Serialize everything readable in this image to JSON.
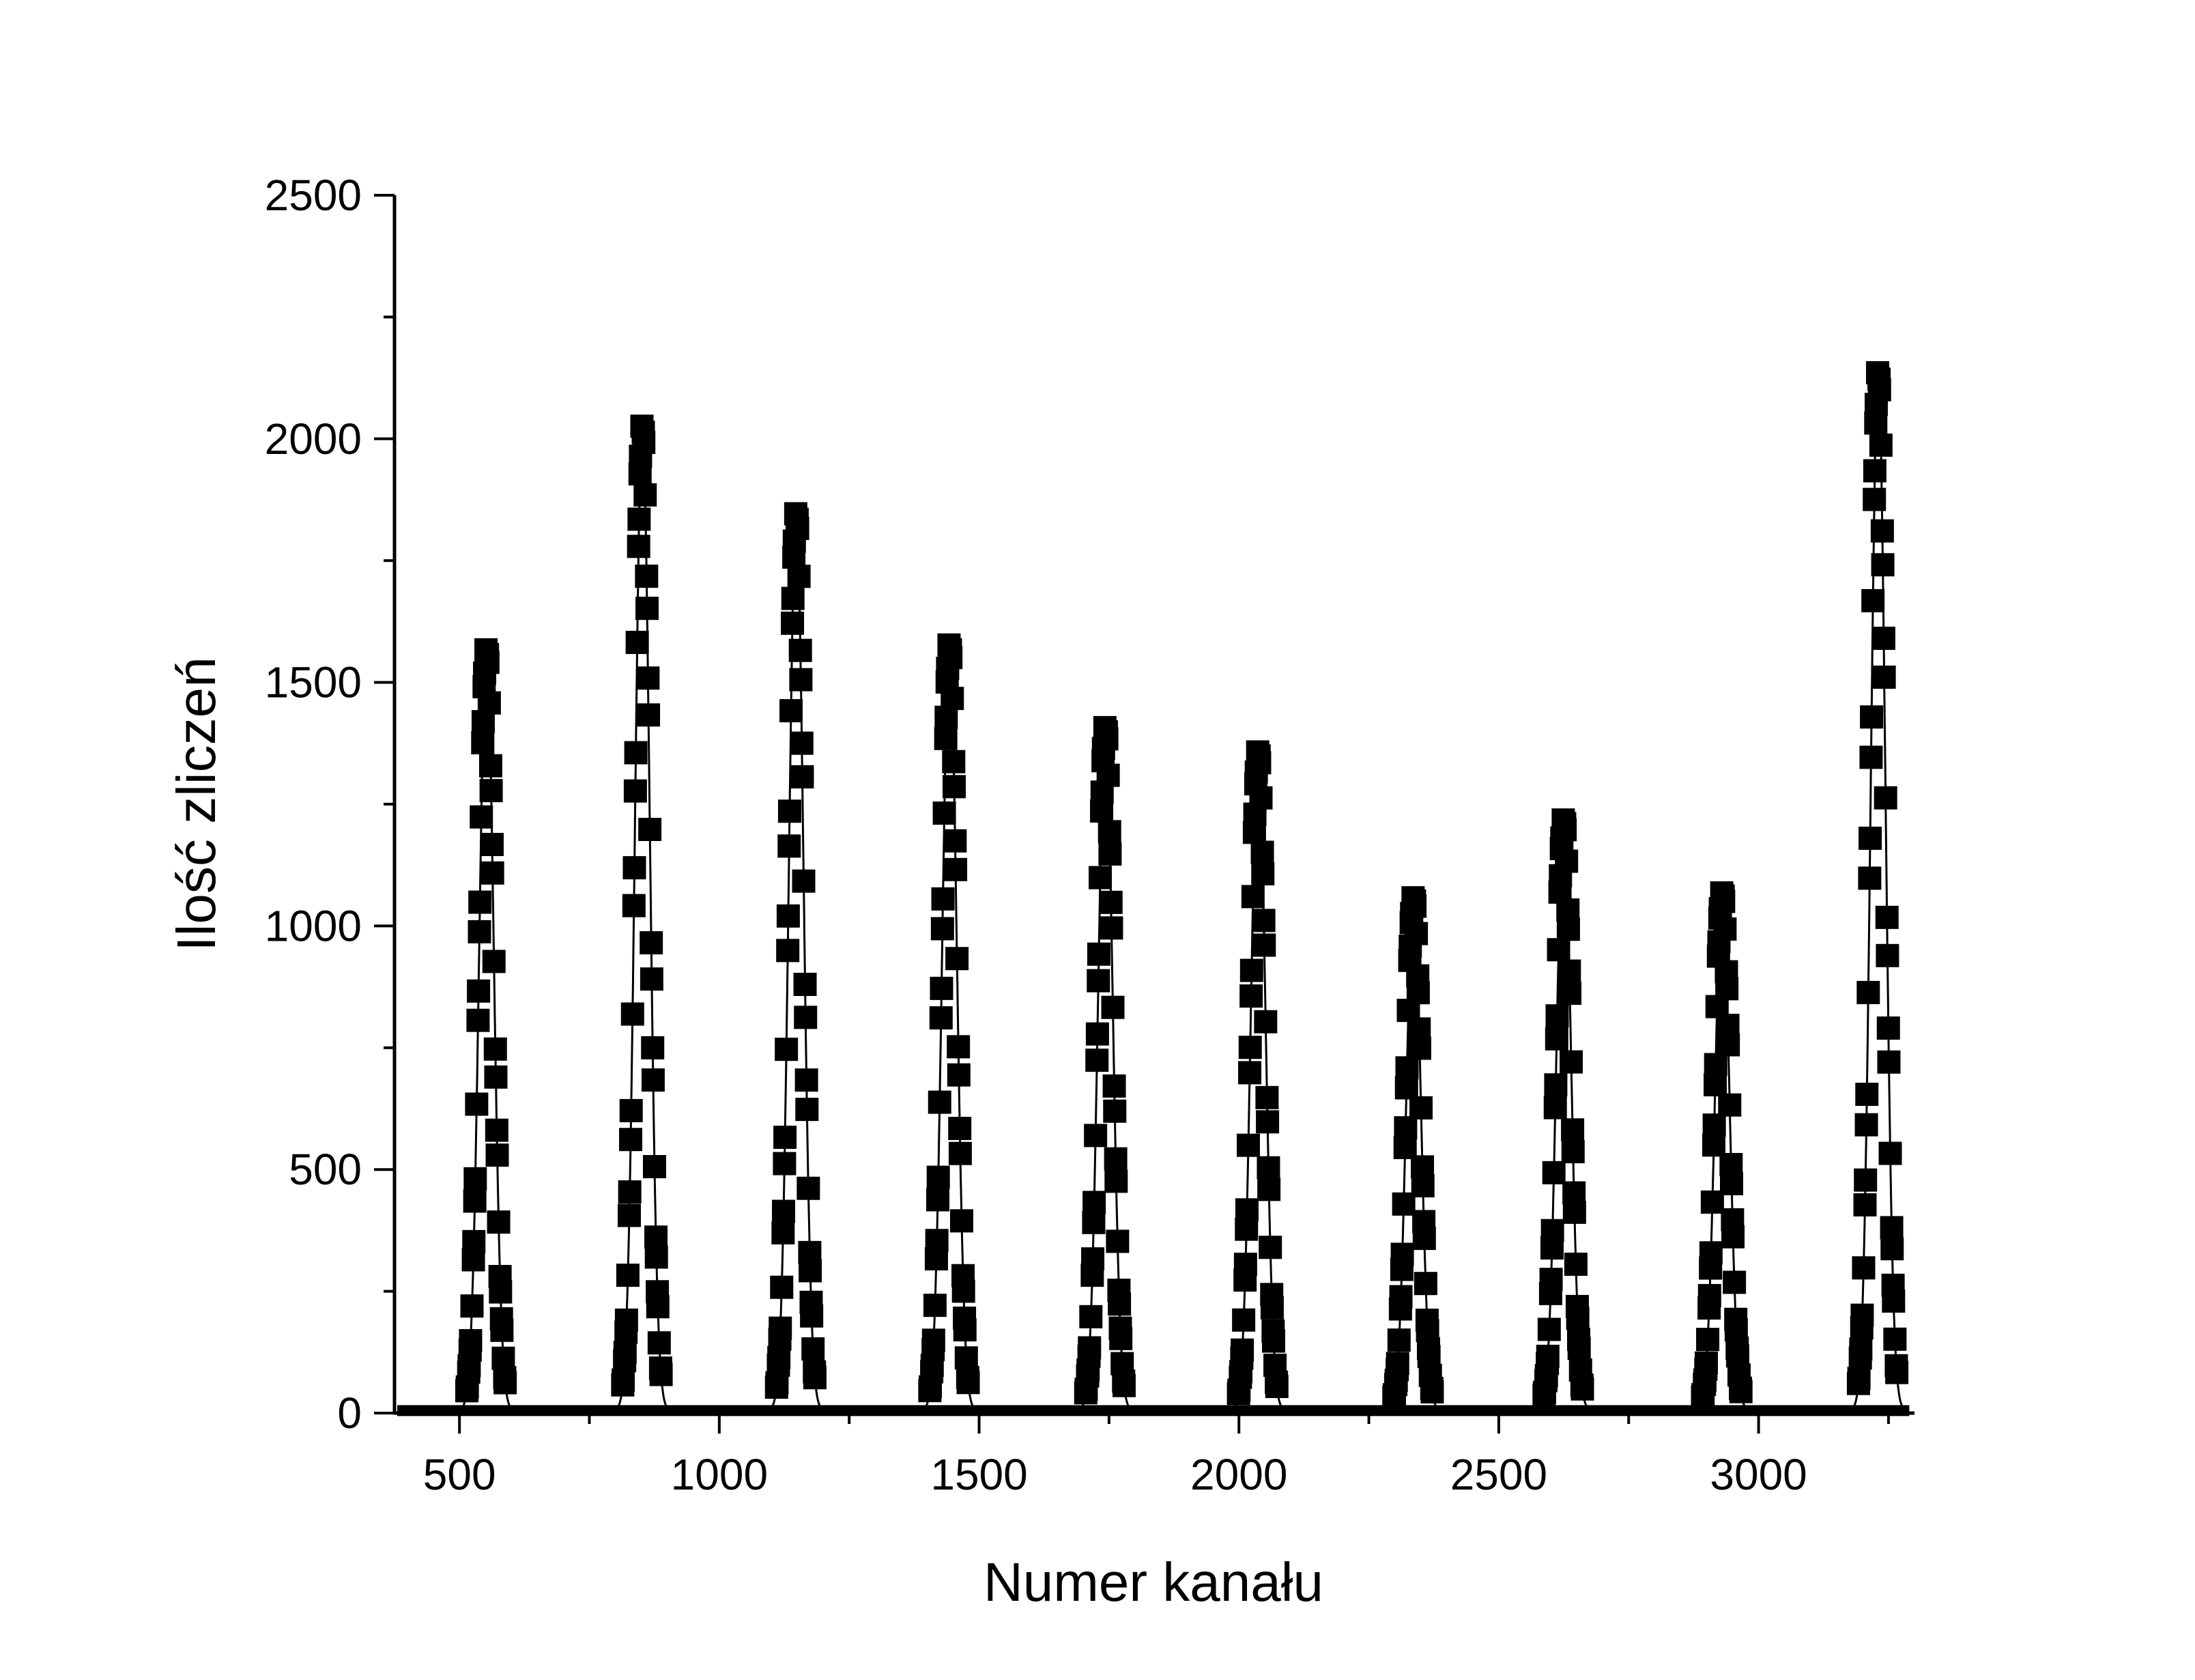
{
  "chart_data": {
    "type": "line",
    "markers": "filled-square",
    "xlabel": "Numer kanału",
    "ylabel": "Ilość zliczeń",
    "xlim": [
      375,
      3300
    ],
    "ylim": [
      0,
      2500
    ],
    "xticks": [
      500,
      1000,
      1500,
      2000,
      2500,
      3000
    ],
    "xtick_labels": [
      "500",
      "1000",
      "1500",
      "2000",
      "2500",
      "3000"
    ],
    "yticks": [
      0,
      500,
      1000,
      1500,
      2000,
      2500
    ],
    "ytick_labels": [
      "0",
      "500",
      "1000",
      "1500",
      "2000",
      "2500"
    ],
    "grid": false,
    "legend": "none",
    "colors": {
      "line": "#000000",
      "marker": "#000000",
      "axis": "#000000"
    },
    "peaks": [
      {
        "center": 552,
        "peak_value": 1570
      },
      {
        "center": 852,
        "peak_value": 2030
      },
      {
        "center": 1148,
        "peak_value": 1850
      },
      {
        "center": 1443,
        "peak_value": 1580
      },
      {
        "center": 1743,
        "peak_value": 1410
      },
      {
        "center": 2037,
        "peak_value": 1360
      },
      {
        "center": 2336,
        "peak_value": 1060
      },
      {
        "center": 2625,
        "peak_value": 1220
      },
      {
        "center": 2930,
        "peak_value": 1070
      },
      {
        "center": 3230,
        "peak_value": 2140
      }
    ],
    "baseline_value": 5
  }
}
